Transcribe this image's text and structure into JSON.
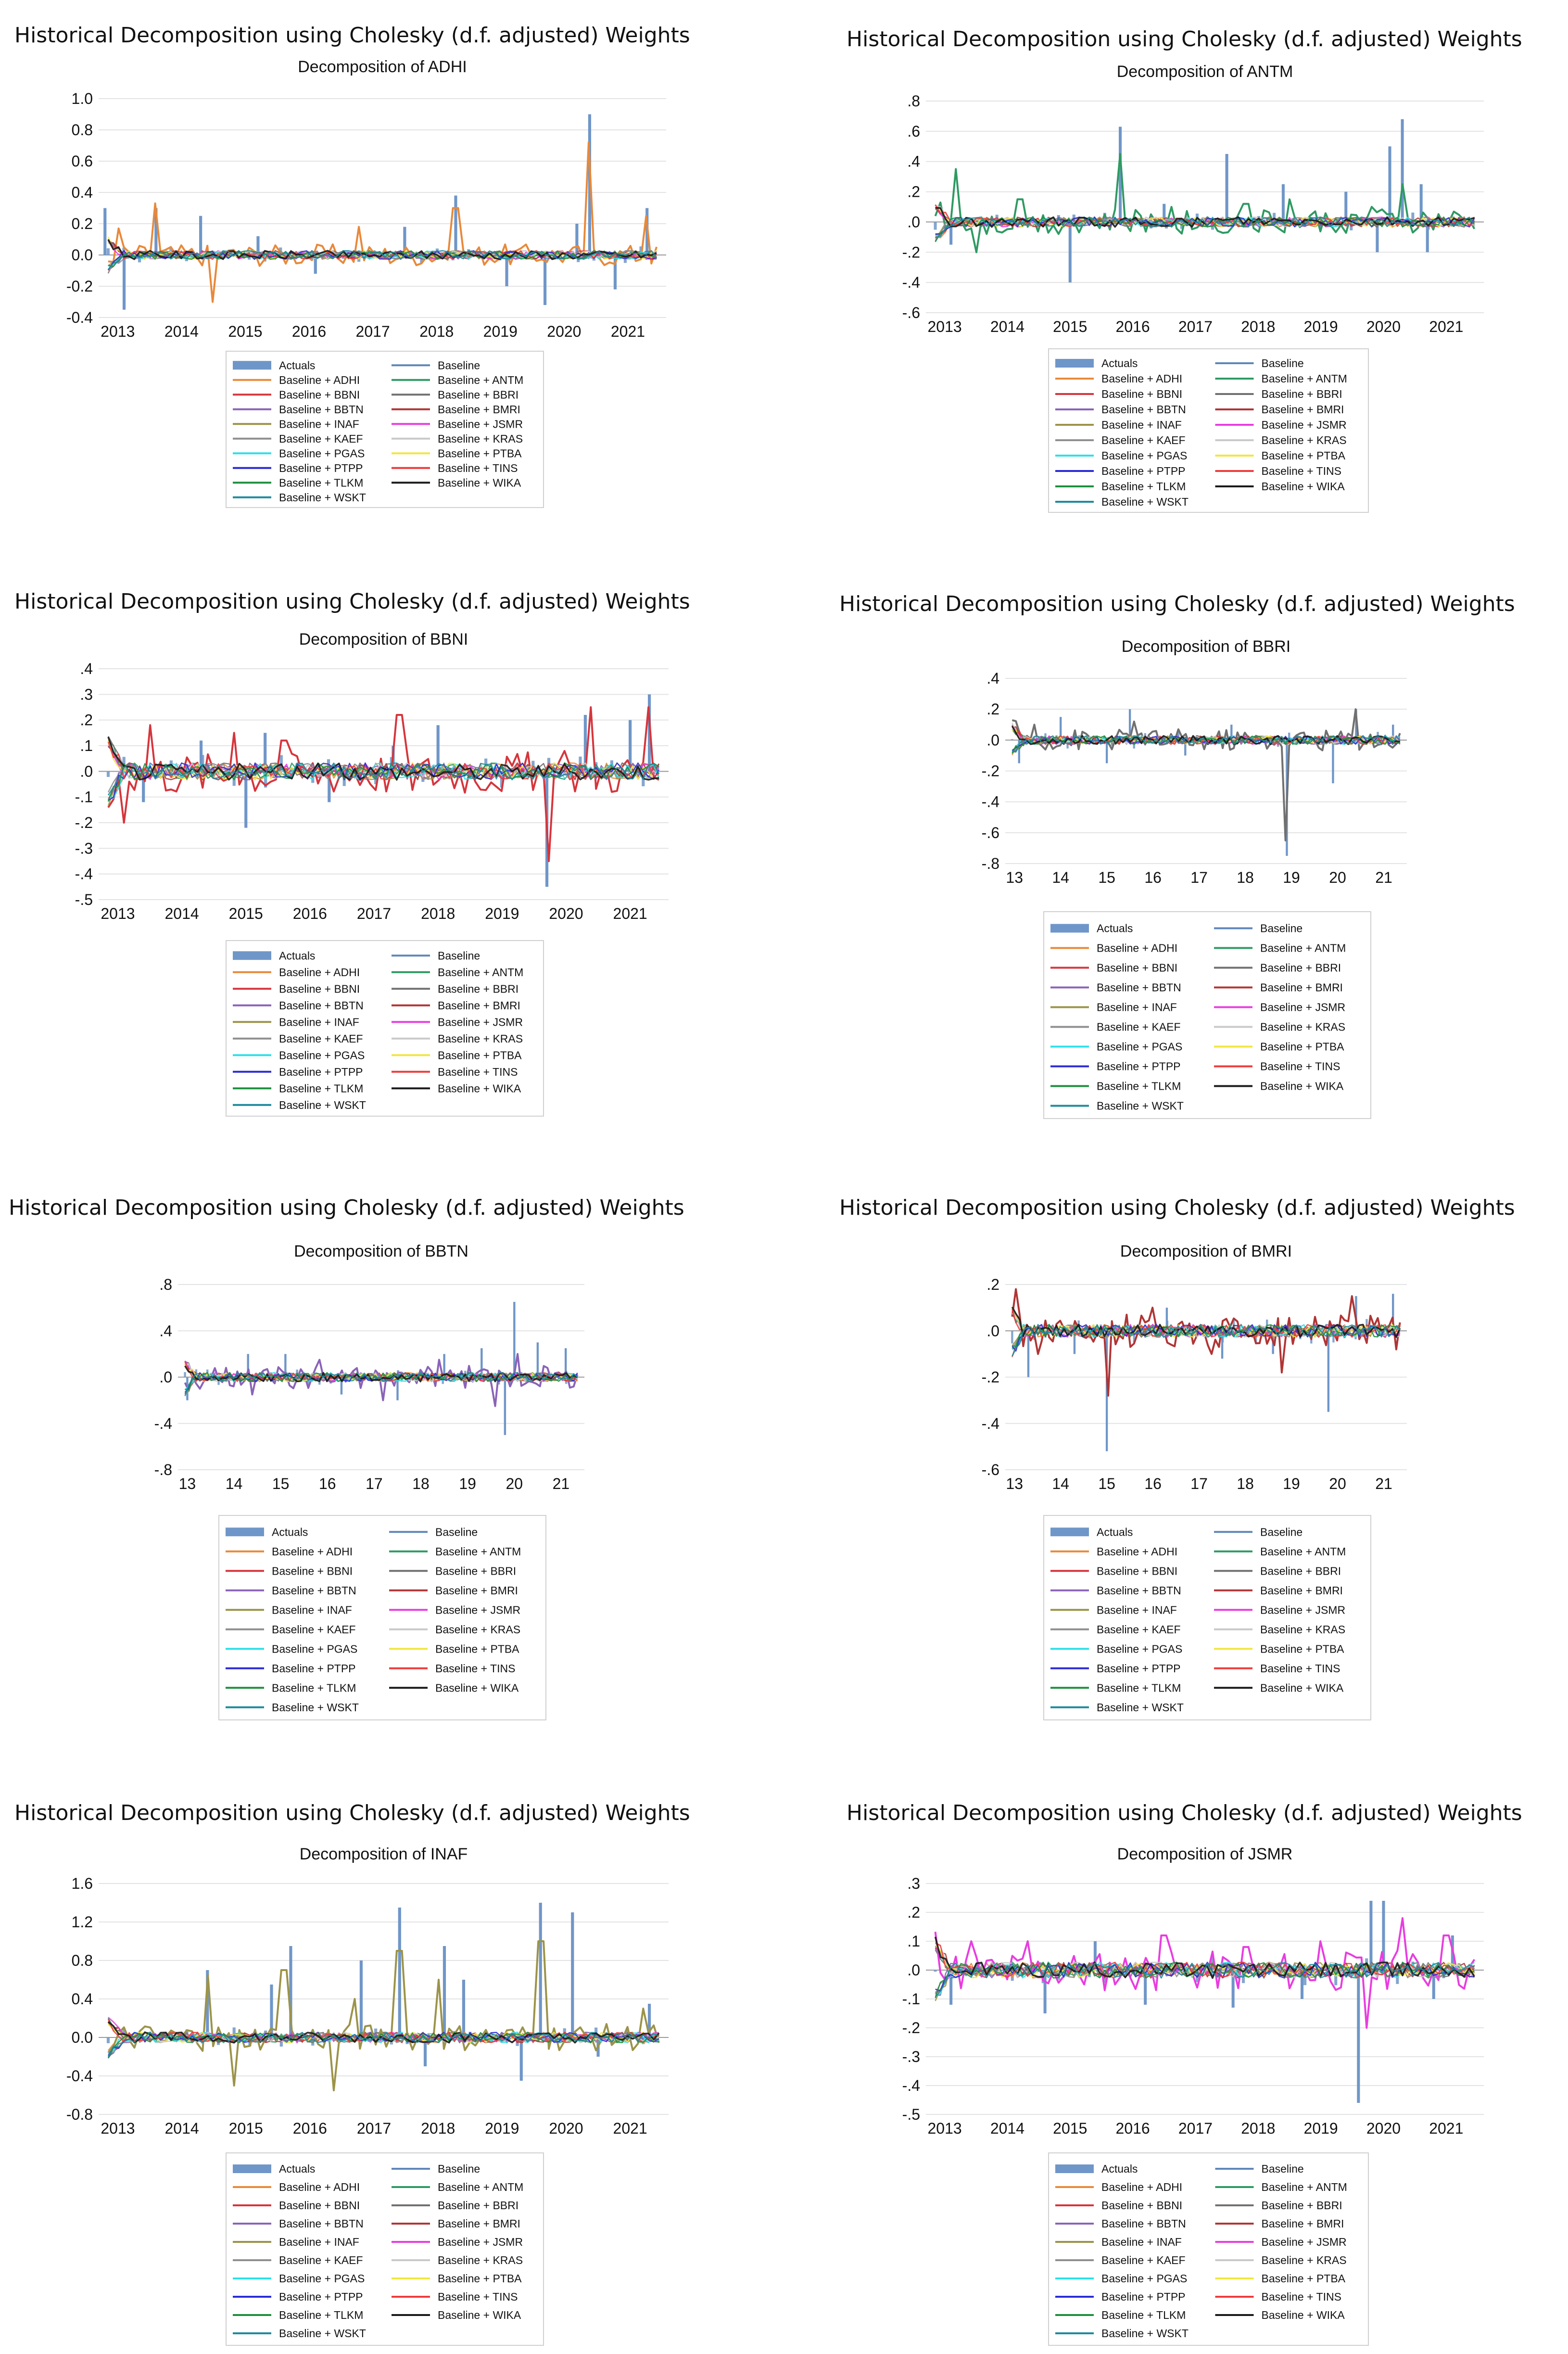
{
  "main_title": "Historical Decomposition using Cholesky (d.f. adjusted) Weights",
  "legend": [
    {
      "label": "Actuals",
      "color": "#6f96c8",
      "kind": "bar"
    },
    {
      "label": "Baseline",
      "color": "#5f86b8",
      "kind": "line"
    },
    {
      "label": "Baseline + ADHI",
      "color": "#e8893a",
      "kind": "line"
    },
    {
      "label": "Baseline + ANTM",
      "color": "#2e9a63",
      "kind": "line"
    },
    {
      "label": "Baseline + BBNI",
      "color": "#d6353c",
      "kind": "line"
    },
    {
      "label": "Baseline + BBRI",
      "color": "#707070",
      "kind": "line"
    },
    {
      "label": "Baseline + BBTN",
      "color": "#8a63b8",
      "kind": "line"
    },
    {
      "label": "Baseline + BMRI",
      "color": "#b03535",
      "kind": "line"
    },
    {
      "label": "Baseline + INAF",
      "color": "#9c9348",
      "kind": "line"
    },
    {
      "label": "Baseline + JSMR",
      "color": "#e83de0",
      "kind": "line"
    },
    {
      "label": "Baseline + KAEF",
      "color": "#8f8f8f",
      "kind": "line"
    },
    {
      "label": "Baseline + KRAS",
      "color": "#c9c9c9",
      "kind": "line"
    },
    {
      "label": "Baseline + PGAS",
      "color": "#2de0e8",
      "kind": "line"
    },
    {
      "label": "Baseline + PTBA",
      "color": "#f2e640",
      "kind": "line"
    },
    {
      "label": "Baseline + PTPP",
      "color": "#2b2bd6",
      "kind": "line"
    },
    {
      "label": "Baseline + TINS",
      "color": "#ee3b3b",
      "kind": "line"
    },
    {
      "label": "Baseline + TLKM",
      "color": "#1d8f3d",
      "kind": "line"
    },
    {
      "label": "Baseline + WIKA",
      "color": "#1a1a1a",
      "kind": "line"
    },
    {
      "label": "Baseline + WSKT",
      "color": "#1f8a9c",
      "kind": "line"
    }
  ],
  "chart_data": [
    {
      "type": "line",
      "title": "Decomposition of ADHI",
      "x_tick_labels": [
        "2013",
        "2014",
        "2015",
        "2016",
        "2017",
        "2018",
        "2019",
        "2020",
        "2021"
      ],
      "y_tick_labels": [
        "1.0",
        "0.8",
        "0.6",
        "0.4",
        "0.2",
        "0.0",
        "-0.2",
        "-0.4"
      ],
      "ylim": [
        -0.4,
        1.0
      ],
      "yticks": [
        1.0,
        0.8,
        0.6,
        0.4,
        0.2,
        0.0,
        -0.2,
        -0.4
      ],
      "x_range": [
        2012.7,
        2021.6
      ],
      "highlight_series": "Baseline + ADHI",
      "actual_spikes": [
        [
          2012.8,
          0.3
        ],
        [
          2013.1,
          -0.35
        ],
        [
          2013.6,
          0.3
        ],
        [
          2014.3,
          0.25
        ],
        [
          2015.2,
          0.12
        ],
        [
          2016.1,
          -0.12
        ],
        [
          2017.5,
          0.18
        ],
        [
          2018.3,
          0.38
        ],
        [
          2019.1,
          -0.2
        ],
        [
          2019.7,
          -0.32
        ],
        [
          2020.2,
          0.2
        ],
        [
          2020.4,
          0.9
        ],
        [
          2020.8,
          -0.22
        ],
        [
          2021.3,
          0.3
        ]
      ],
      "highlight_spikes": [
        [
          2013.0,
          0.2
        ],
        [
          2013.6,
          0.33
        ],
        [
          2014.5,
          -0.3
        ],
        [
          2016.8,
          0.18
        ],
        [
          2018.3,
          0.3
        ],
        [
          2020.4,
          0.72
        ],
        [
          2021.3,
          0.25
        ],
        [
          2021.6,
          -0.12
        ]
      ],
      "noise_amp": 0.05
    },
    {
      "type": "line",
      "title": "Decomposition of ANTM",
      "x_tick_labels": [
        "2013",
        "2014",
        "2015",
        "2016",
        "2017",
        "2018",
        "2019",
        "2020",
        "2021"
      ],
      "y_tick_labels": [
        ".8",
        ".6",
        ".4",
        ".2",
        ".0",
        "-.2",
        "-.4",
        "-.6"
      ],
      "ylim": [
        -0.6,
        0.8
      ],
      "yticks": [
        0.8,
        0.6,
        0.4,
        0.2,
        0.0,
        -0.2,
        -0.4,
        -0.6
      ],
      "x_range": [
        2012.7,
        2021.6
      ],
      "highlight_series": "Baseline + ANTM",
      "actual_spikes": [
        [
          2013.1,
          -0.15
        ],
        [
          2015.0,
          -0.4
        ],
        [
          2015.8,
          0.63
        ],
        [
          2016.5,
          0.12
        ],
        [
          2017.5,
          0.45
        ],
        [
          2018.4,
          0.25
        ],
        [
          2019.4,
          0.2
        ],
        [
          2019.9,
          -0.2
        ],
        [
          2020.1,
          0.5
        ],
        [
          2020.3,
          0.68
        ],
        [
          2020.6,
          0.25
        ],
        [
          2020.7,
          -0.2
        ]
      ],
      "highlight_spikes": [
        [
          2013.2,
          0.35
        ],
        [
          2013.5,
          -0.2
        ],
        [
          2014.2,
          0.15
        ],
        [
          2015.8,
          0.45
        ],
        [
          2016.6,
          0.1
        ],
        [
          2017.8,
          0.12
        ],
        [
          2018.5,
          0.15
        ],
        [
          2019.8,
          0.1
        ],
        [
          2020.3,
          0.25
        ]
      ],
      "noise_amp": 0.06
    },
    {
      "type": "line",
      "title": "Decomposition of BBNI",
      "x_tick_labels": [
        "2013",
        "2014",
        "2015",
        "2016",
        "2017",
        "2018",
        "2019",
        "2020",
        "2021"
      ],
      "y_tick_labels": [
        ".4",
        ".3",
        ".2",
        ".1",
        ".0",
        "-.1",
        "-.2",
        "-.3",
        "-.4",
        "-.5"
      ],
      "ylim": [
        -0.5,
        0.4
      ],
      "yticks": [
        0.4,
        0.3,
        0.2,
        0.1,
        0.0,
        -0.1,
        -0.2,
        -0.3,
        -0.4,
        -0.5
      ],
      "x_range": [
        2012.7,
        2021.6
      ],
      "highlight_series": "Baseline + BBNI",
      "actual_spikes": [
        [
          2013.4,
          -0.12
        ],
        [
          2014.3,
          0.12
        ],
        [
          2015.0,
          -0.22
        ],
        [
          2015.3,
          0.15
        ],
        [
          2016.3,
          -0.12
        ],
        [
          2017.3,
          0.1
        ],
        [
          2018.0,
          0.18
        ],
        [
          2019.7,
          -0.45
        ],
        [
          2020.3,
          0.22
        ],
        [
          2021.0,
          0.2
        ],
        [
          2021.3,
          0.3
        ]
      ],
      "highlight_spikes": [
        [
          2013.1,
          -0.2
        ],
        [
          2013.5,
          0.18
        ],
        [
          2014.8,
          0.15
        ],
        [
          2015.6,
          0.12
        ],
        [
          2017.4,
          0.22
        ],
        [
          2019.7,
          -0.35
        ],
        [
          2020.4,
          0.25
        ],
        [
          2021.3,
          0.25
        ]
      ],
      "noise_amp": 0.06
    },
    {
      "type": "line",
      "title": "Decomposition of BBRI",
      "x_tick_labels": [
        "13",
        "14",
        "15",
        "16",
        "17",
        "18",
        "19",
        "20",
        "21"
      ],
      "y_tick_labels": [
        ".4",
        ".2",
        ".0",
        "-.2",
        "-.4",
        "-.6",
        "-.8"
      ],
      "ylim": [
        -0.8,
        0.4
      ],
      "yticks": [
        0.4,
        0.2,
        0.0,
        -0.2,
        -0.4,
        -0.6,
        -0.8
      ],
      "x_range": [
        2012.8,
        2021.5
      ],
      "highlight_series": "Baseline + BBRI",
      "actual_spikes": [
        [
          2013.1,
          -0.15
        ],
        [
          2014.0,
          0.15
        ],
        [
          2015.0,
          -0.15
        ],
        [
          2015.5,
          0.2
        ],
        [
          2016.7,
          -0.1
        ],
        [
          2017.7,
          0.1
        ],
        [
          2018.9,
          -0.75
        ],
        [
          2019.9,
          -0.28
        ],
        [
          2020.4,
          0.2
        ],
        [
          2021.2,
          0.1
        ]
      ],
      "highlight_spikes": [
        [
          2013.4,
          0.1
        ],
        [
          2015.6,
          0.12
        ],
        [
          2018.9,
          -0.65
        ],
        [
          2020.4,
          0.2
        ]
      ],
      "noise_amp": 0.05
    },
    {
      "type": "line",
      "title": "Decomposition of BBTN",
      "x_tick_labels": [
        "13",
        "14",
        "15",
        "16",
        "17",
        "18",
        "19",
        "20",
        "21"
      ],
      "y_tick_labels": [
        ".8",
        ".4",
        ".0",
        "-.4",
        "-.8"
      ],
      "ylim": [
        -0.8,
        0.8
      ],
      "yticks": [
        0.8,
        0.4,
        0.0,
        -0.4,
        -0.8
      ],
      "x_range": [
        2012.8,
        2021.5
      ],
      "highlight_series": "Baseline + BBTN",
      "actual_spikes": [
        [
          2013.0,
          -0.2
        ],
        [
          2014.3,
          0.2
        ],
        [
          2015.1,
          0.2
        ],
        [
          2016.3,
          -0.15
        ],
        [
          2017.5,
          -0.2
        ],
        [
          2018.5,
          0.2
        ],
        [
          2019.3,
          0.25
        ],
        [
          2019.8,
          -0.5
        ],
        [
          2020.0,
          0.65
        ],
        [
          2020.5,
          0.3
        ],
        [
          2021.1,
          0.25
        ]
      ],
      "highlight_spikes": [
        [
          2013.3,
          -0.1
        ],
        [
          2014.4,
          -0.15
        ],
        [
          2015.8,
          0.15
        ],
        [
          2017.2,
          -0.2
        ],
        [
          2018.4,
          0.15
        ],
        [
          2019.6,
          -0.25
        ],
        [
          2020.1,
          0.2
        ]
      ],
      "noise_amp": 0.07
    },
    {
      "type": "line",
      "title": "Decomposition of BMRI",
      "x_tick_labels": [
        "13",
        "14",
        "15",
        "16",
        "17",
        "18",
        "19",
        "20",
        "21"
      ],
      "y_tick_labels": [
        ".2",
        ".0",
        "-.2",
        "-.4",
        "-.6"
      ],
      "ylim": [
        -0.6,
        0.2
      ],
      "yticks": [
        0.2,
        0.0,
        -0.2,
        -0.4,
        -0.6
      ],
      "x_range": [
        2012.8,
        2021.5
      ],
      "highlight_series": "Baseline + BMRI",
      "actual_spikes": [
        [
          2013.3,
          -0.2
        ],
        [
          2014.3,
          -0.1
        ],
        [
          2015.0,
          -0.52
        ],
        [
          2016.3,
          0.1
        ],
        [
          2017.5,
          -0.12
        ],
        [
          2018.6,
          -0.1
        ],
        [
          2019.8,
          -0.35
        ],
        [
          2020.4,
          0.15
        ],
        [
          2021.2,
          0.16
        ]
      ],
      "highlight_spikes": [
        [
          2013.0,
          0.12
        ],
        [
          2013.5,
          -0.1
        ],
        [
          2015.0,
          -0.28
        ],
        [
          2016.0,
          0.1
        ],
        [
          2017.3,
          -0.1
        ],
        [
          2018.8,
          -0.18
        ],
        [
          2020.3,
          0.15
        ],
        [
          2021.3,
          -0.08
        ]
      ],
      "noise_amp": 0.05
    },
    {
      "type": "line",
      "title": "Decomposition of INAF",
      "x_tick_labels": [
        "2013",
        "2014",
        "2015",
        "2016",
        "2017",
        "2018",
        "2019",
        "2020",
        "2021"
      ],
      "y_tick_labels": [
        "1.6",
        "1.2",
        "0.8",
        "0.4",
        "0.0",
        "-0.4",
        "-0.8"
      ],
      "ylim": [
        -0.8,
        1.6
      ],
      "yticks": [
        1.6,
        1.2,
        0.8,
        0.4,
        0.0,
        -0.4,
        -0.8
      ],
      "x_range": [
        2012.7,
        2021.6
      ],
      "highlight_series": "Baseline + INAF",
      "actual_spikes": [
        [
          2014.4,
          0.7
        ],
        [
          2015.4,
          0.55
        ],
        [
          2015.7,
          0.95
        ],
        [
          2016.8,
          0.8
        ],
        [
          2017.4,
          1.35
        ],
        [
          2017.8,
          -0.3
        ],
        [
          2018.1,
          0.95
        ],
        [
          2018.4,
          0.6
        ],
        [
          2019.3,
          -0.45
        ],
        [
          2019.6,
          1.4
        ],
        [
          2020.1,
          1.3
        ],
        [
          2020.5,
          -0.2
        ],
        [
          2021.3,
          0.35
        ]
      ],
      "highlight_spikes": [
        [
          2014.4,
          0.65
        ],
        [
          2014.8,
          -0.5
        ],
        [
          2015.6,
          0.7
        ],
        [
          2016.4,
          -0.55
        ],
        [
          2016.7,
          0.4
        ],
        [
          2017.4,
          0.9
        ],
        [
          2018.0,
          0.6
        ],
        [
          2019.6,
          1.0
        ],
        [
          2021.2,
          0.3
        ]
      ],
      "noise_amp": 0.1
    },
    {
      "type": "line",
      "title": "Decomposition of JSMR",
      "x_tick_labels": [
        "2013",
        "2014",
        "2015",
        "2016",
        "2017",
        "2018",
        "2019",
        "2020",
        "2021"
      ],
      "y_tick_labels": [
        ".3",
        ".2",
        ".1",
        ".0",
        "-.1",
        "-.2",
        "-.3",
        "-.4",
        "-.5"
      ],
      "ylim": [
        -0.5,
        0.3
      ],
      "yticks": [
        0.3,
        0.2,
        0.1,
        0.0,
        -0.1,
        -0.2,
        -0.3,
        -0.4,
        -0.5
      ],
      "x_range": [
        2012.7,
        2021.6
      ],
      "highlight_series": "Baseline + JSMR",
      "actual_spikes": [
        [
          2013.1,
          -0.12
        ],
        [
          2014.6,
          -0.15
        ],
        [
          2015.4,
          0.1
        ],
        [
          2016.2,
          -0.12
        ],
        [
          2017.6,
          -0.13
        ],
        [
          2018.7,
          -0.1
        ],
        [
          2019.6,
          -0.46
        ],
        [
          2019.8,
          0.24
        ],
        [
          2020.0,
          0.24
        ],
        [
          2020.8,
          -0.1
        ],
        [
          2021.1,
          0.12
        ]
      ],
      "highlight_spikes": [
        [
          2013.4,
          0.1
        ],
        [
          2014.3,
          0.1
        ],
        [
          2016.5,
          0.12
        ],
        [
          2017.8,
          0.08
        ],
        [
          2019.0,
          0.1
        ],
        [
          2019.7,
          -0.2
        ],
        [
          2020.3,
          0.18
        ],
        [
          2021.0,
          0.12
        ]
      ],
      "noise_amp": 0.05
    }
  ]
}
